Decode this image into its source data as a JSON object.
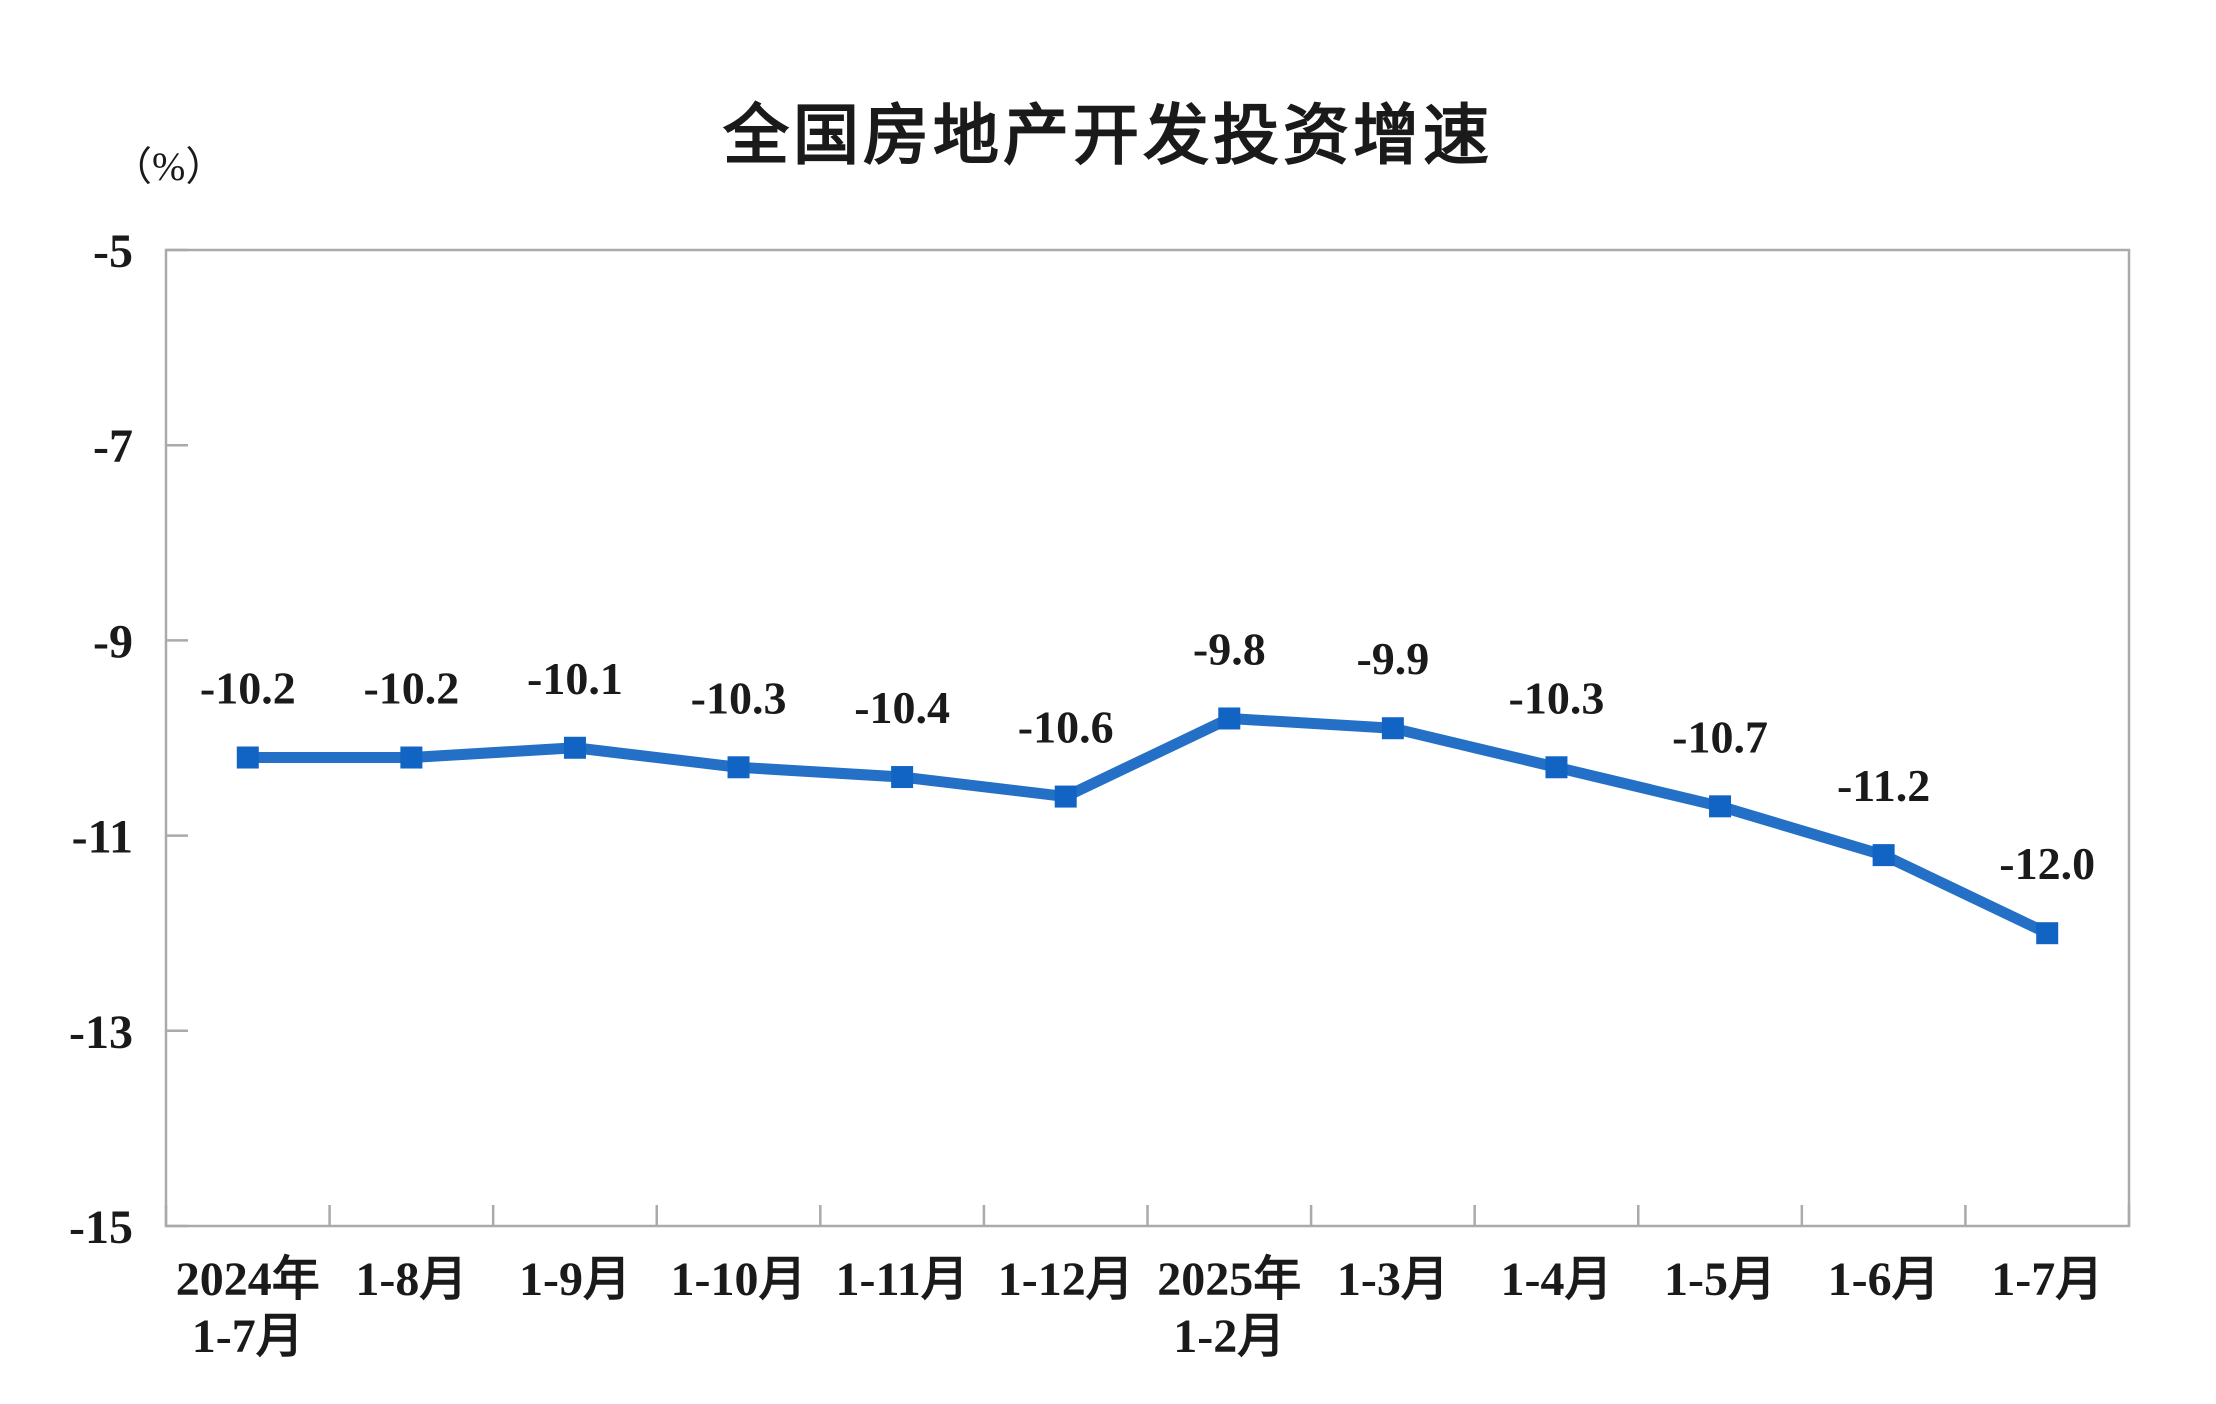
{
  "chart_data": {
    "type": "line",
    "title": "全国房地产开发投资增速",
    "y_unit_label": "（%）",
    "categories": [
      [
        "2024年",
        "1-7月"
      ],
      [
        "1-8月"
      ],
      [
        "1-9月"
      ],
      [
        "1-10月"
      ],
      [
        "1-11月"
      ],
      [
        "1-12月"
      ],
      [
        "2025年",
        "1-2月"
      ],
      [
        "1-3月"
      ],
      [
        "1-4月"
      ],
      [
        "1-5月"
      ],
      [
        "1-6月"
      ],
      [
        "1-7月"
      ]
    ],
    "series": [
      {
        "name": "全国房地产开发投资增速",
        "values": [
          -10.2,
          -10.2,
          -10.1,
          -10.3,
          -10.4,
          -10.6,
          -9.8,
          -9.9,
          -10.3,
          -10.7,
          -11.2,
          -12.0
        ],
        "labels": [
          "-10.2",
          "-10.2",
          "-10.1",
          "-10.3",
          "-10.4",
          "-10.6",
          "-9.8",
          "-9.9",
          "-10.3",
          "-10.7",
          "-11.2",
          "-12.0"
        ]
      }
    ],
    "y_ticks": [
      "-5",
      "-7",
      "-9",
      "-11",
      "-13",
      "-15"
    ],
    "ylim": [
      -15,
      -5
    ],
    "grid": false,
    "legend": false,
    "marker_shape": "square",
    "colors": {
      "line": "#2470C6",
      "marker": "#1164C4",
      "axis": "#aaaaaa",
      "text": "#1a1a1a"
    }
  }
}
